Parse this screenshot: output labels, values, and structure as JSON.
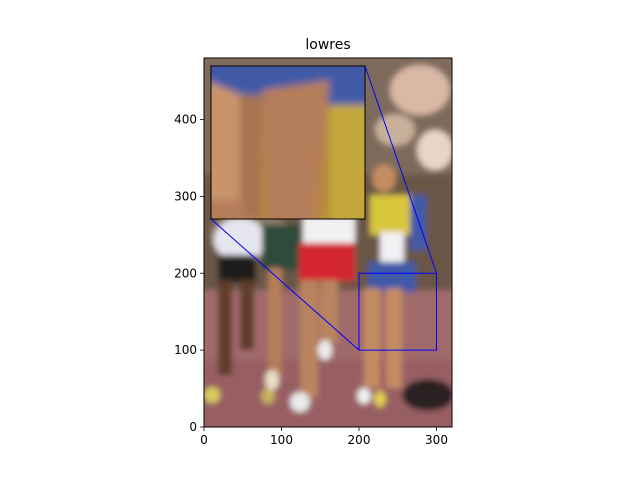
{
  "chart_data": {
    "type": "image",
    "title": "lowres",
    "xlabel": "",
    "ylabel": "",
    "xlim": [
      0,
      320
    ],
    "ylim": [
      0,
      480
    ],
    "xticks": [
      0,
      100,
      200,
      300
    ],
    "yticks": [
      0,
      100,
      200,
      300,
      400
    ],
    "grid": false,
    "inset_region": {
      "x": [
        200,
        300
      ],
      "y": [
        100,
        200
      ]
    },
    "colors": {
      "connector": "#0000ff",
      "track": "#a06a6a",
      "skin": "#c48c62",
      "jersey_blue": "#3f5aa8",
      "jersey_yellow": "#d8c63a",
      "shorts_red": "#d42632",
      "background_stand": "#6a5646"
    }
  }
}
